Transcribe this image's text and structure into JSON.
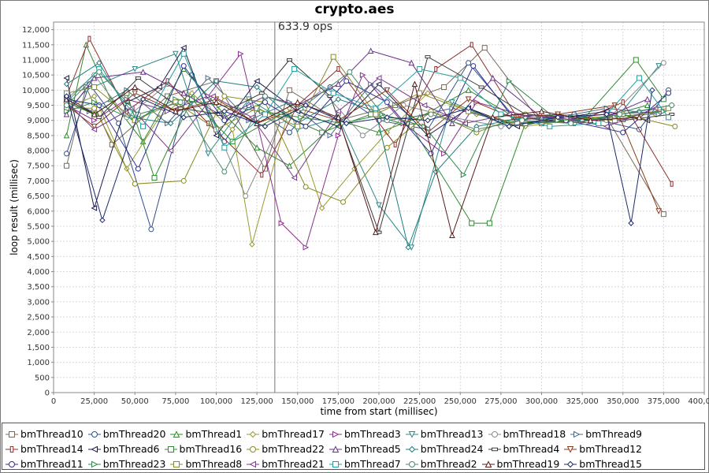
{
  "chart_data": {
    "type": "line",
    "title": "crypto.aes",
    "xlabel": "time from start (millisec)",
    "ylabel": "loop result (millisec)",
    "xlim": [
      0,
      400000
    ],
    "ylim": [
      0,
      12250
    ],
    "xticks": [
      "0",
      "25,000",
      "50,000",
      "75,000",
      "100,000",
      "125,000",
      "150,000",
      "175,000",
      "200,000",
      "225,000",
      "250,000",
      "275,000",
      "300,000",
      "325,000",
      "350,000",
      "375,000",
      "400,000"
    ],
    "yticks": [
      "0",
      "500",
      "1,000",
      "1,500",
      "2,000",
      "2,500",
      "3,000",
      "3,500",
      "4,000",
      "4,500",
      "5,000",
      "5,500",
      "6,000",
      "6,500",
      "7,000",
      "7,500",
      "8,000",
      "8,500",
      "9,000",
      "9,500",
      "10,000",
      "10,500",
      "11,000",
      "11,500",
      "12,000"
    ],
    "grid": true,
    "legend_position": "bottom",
    "marker": {
      "x": 136000,
      "label": "633.9 ops"
    },
    "series": [
      {
        "name": "bmThread10",
        "color": "#7a6a5a",
        "marker": "square",
        "x": [
          8000,
          20000,
          36000,
          70000,
          100000,
          130000,
          145000,
          175000,
          210000,
          240000,
          265000,
          300000,
          340000,
          375000
        ],
        "values": [
          7500,
          10100,
          8200,
          9800,
          10300,
          7400,
          10000,
          9000,
          9500,
          10100,
          11400,
          8900,
          9100,
          5900
        ]
      },
      {
        "name": "bmThread20",
        "color": "#2f4f8f",
        "marker": "circle",
        "x": [
          8000,
          22000,
          40000,
          60000,
          85000,
          105000,
          120000,
          145000,
          170000,
          200000,
          230000,
          255000,
          285000,
          320000,
          360000,
          378000
        ],
        "values": [
          7900,
          10200,
          8900,
          5400,
          10500,
          8300,
          9500,
          8600,
          10100,
          9000,
          8700,
          10900,
          9000,
          9200,
          8700,
          10000
        ]
      },
      {
        "name": "bmThread1",
        "color": "#2e8b2e",
        "marker": "triangle",
        "x": [
          8000,
          20000,
          35000,
          55000,
          80000,
          105000,
          125000,
          145000,
          175000,
          200000,
          225000,
          255000,
          290000,
          330000,
          365000
        ],
        "values": [
          8500,
          11500,
          9700,
          8300,
          10700,
          9200,
          8100,
          7500,
          9000,
          8600,
          9100,
          10000,
          8900,
          9000,
          9500
        ]
      },
      {
        "name": "bmThread17",
        "color": "#9a9a30",
        "marker": "diamond",
        "x": [
          8000,
          25000,
          45000,
          65000,
          85000,
          110000,
          122000,
          145000,
          165000,
          185000,
          205000,
          230000,
          260000,
          290000,
          330000,
          370000
        ],
        "values": [
          9400,
          9800,
          7400,
          9100,
          9900,
          8700,
          4900,
          9400,
          6100,
          7400,
          8600,
          9900,
          9200,
          8800,
          9100,
          9200
        ]
      },
      {
        "name": "bmThread3",
        "color": "#8b2f8b",
        "marker": "rightarrow",
        "x": [
          8000,
          25000,
          45000,
          70000,
          95000,
          115000,
          140000,
          155000,
          175000,
          190000,
          215000,
          240000,
          260000,
          300000,
          340000,
          375000
        ],
        "values": [
          9500,
          9000,
          9700,
          9300,
          9800,
          11200,
          5600,
          4800,
          8500,
          10500,
          8900,
          7900,
          9600,
          9000,
          9200,
          9300
        ]
      },
      {
        "name": "bmThread13",
        "color": "#2f8b8b",
        "marker": "downtriangle",
        "x": [
          8000,
          20000,
          50000,
          75000,
          95000,
          120000,
          150000,
          175000,
          200000,
          220000,
          245000,
          275000,
          310000,
          345000,
          372000
        ],
        "values": [
          9300,
          10000,
          10700,
          11200,
          7900,
          9700,
          8700,
          9100,
          6200,
          4800,
          9600,
          8900,
          9200,
          9000,
          10800
        ]
      },
      {
        "name": "bmThread18",
        "color": "#8a8a8a",
        "marker": "circle",
        "x": [
          8000,
          25000,
          45000,
          70000,
          95000,
          118000,
          140000,
          165000,
          190000,
          215000,
          245000,
          275000,
          305000,
          340000,
          375000
        ],
        "values": [
          9700,
          10500,
          9100,
          10200,
          9400,
          6500,
          9000,
          10000,
          8500,
          9500,
          9100,
          8800,
          9000,
          9000,
          10900
        ]
      },
      {
        "name": "bmThread9",
        "color": "#4a6a8a",
        "marker": "rightarrow",
        "x": [
          8000,
          22000,
          45000,
          70000,
          95000,
          120000,
          145000,
          170000,
          195000,
          220000,
          245000,
          275000,
          310000,
          340000,
          372000
        ],
        "values": [
          9600,
          9300,
          10000,
          8900,
          10400,
          9000,
          9600,
          8500,
          10200,
          9100,
          9400,
          9000,
          9100,
          9400,
          9200
        ]
      },
      {
        "name": "bmThread14",
        "color": "#8b2f2f",
        "marker": "vbar",
        "x": [
          8000,
          22000,
          45000,
          70000,
          95000,
          128000,
          150000,
          175000,
          210000,
          235000,
          257000,
          285000,
          320000,
          350000,
          380000
        ],
        "values": [
          9800,
          11700,
          9300,
          10300,
          8900,
          7200,
          9500,
          10700,
          8200,
          10700,
          11500,
          9100,
          8900,
          9600,
          6900
        ]
      },
      {
        "name": "bmThread6",
        "color": "#1a1a4a",
        "marker": "leftarrow",
        "x": [
          8000,
          25000,
          45000,
          65000,
          80000,
          100000,
          125000,
          150000,
          175000,
          200000,
          230000,
          255000,
          285000,
          315000,
          340000,
          365000
        ],
        "values": [
          10400,
          6100,
          9600,
          10100,
          11400,
          8500,
          10300,
          9300,
          8800,
          10200,
          8500,
          9400,
          8800,
          9100,
          9300,
          9000
        ]
      },
      {
        "name": "bmThread16",
        "color": "#2e8b2e",
        "marker": "square",
        "x": [
          8000,
          25000,
          45000,
          62000,
          85000,
          110000,
          140000,
          165000,
          195000,
          220000,
          257000,
          268000,
          290000,
          325000,
          358000,
          375000
        ],
        "values": [
          9600,
          9200,
          9900,
          7100,
          9700,
          8300,
          9200,
          8600,
          9200,
          8800,
          5600,
          5600,
          8900,
          9000,
          11000,
          9700
        ]
      },
      {
        "name": "bmThread22",
        "color": "#8a8a20",
        "marker": "circle",
        "x": [
          8000,
          25000,
          50000,
          80000,
          105000,
          130000,
          155000,
          178000,
          205000,
          232000,
          260000,
          290000,
          320000,
          350000,
          382000
        ],
        "values": [
          9400,
          9400,
          6900,
          7000,
          9800,
          9600,
          6800,
          6300,
          8100,
          9300,
          8600,
          9200,
          8900,
          9200,
          8800
        ]
      },
      {
        "name": "bmThread5",
        "color": "#6a2f8b",
        "marker": "triangle",
        "x": [
          8000,
          25000,
          55000,
          80000,
          105000,
          130000,
          150000,
          175000,
          195000,
          220000,
          245000,
          270000,
          300000,
          335000,
          365000
        ],
        "values": [
          9200,
          10400,
          10600,
          9900,
          9100,
          9800,
          9500,
          10200,
          11300,
          10900,
          8900,
          10400,
          9100,
          9000,
          9700
        ]
      },
      {
        "name": "bmThread24",
        "color": "#1f7f7f",
        "marker": "diamond",
        "x": [
          8000,
          28000,
          48000,
          72000,
          100000,
          125000,
          150000,
          175000,
          198000,
          218000,
          235000,
          260000,
          290000,
          325000,
          360000,
          380000
        ],
        "values": [
          10200,
          10900,
          9100,
          8900,
          10300,
          10100,
          8900,
          9700,
          9300,
          4800,
          7300,
          8800,
          9100,
          9000,
          9300,
          9500
        ]
      },
      {
        "name": "bmThread4",
        "color": "#3a3a3a",
        "marker": "hbar",
        "x": [
          8000,
          28000,
          52000,
          78000,
          102000,
          128000,
          145000,
          170000,
          200000,
          230000,
          263000,
          290000,
          320000,
          350000,
          380000
        ],
        "values": [
          9800,
          9100,
          10400,
          9400,
          9200,
          9900,
          11000,
          9800,
          5300,
          11100,
          10100,
          9200,
          9100,
          9000,
          9200
        ]
      },
      {
        "name": "bmThread12",
        "color": "#8b3a1a",
        "marker": "downtriangle",
        "x": [
          8000,
          25000,
          50000,
          75000,
          100000,
          125000,
          150000,
          175000,
          205000,
          230000,
          255000,
          282000,
          310000,
          345000,
          372000
        ],
        "values": [
          9500,
          8800,
          9900,
          9300,
          9700,
          8900,
          9400,
          9000,
          10000,
          8600,
          9700,
          9100,
          9200,
          9500,
          6000
        ]
      },
      {
        "name": "bmThread11",
        "color": "#2f2f8f",
        "marker": "circle",
        "x": [
          8000,
          28000,
          52000,
          80000,
          105000,
          130000,
          155000,
          180000,
          205000,
          232000,
          258000,
          285000,
          315000,
          350000,
          378000
        ],
        "values": [
          9700,
          9500,
          7400,
          10800,
          9000,
          9600,
          8800,
          10300,
          9600,
          7900,
          10800,
          8900,
          9000,
          8600,
          9900
        ]
      },
      {
        "name": "bmThread23",
        "color": "#2f8b4a",
        "marker": "rightarrow",
        "x": [
          8000,
          25000,
          50000,
          75000,
          102000,
          128000,
          152000,
          178000,
          202000,
          228000,
          252000,
          280000,
          310000,
          345000,
          375000
        ],
        "values": [
          9300,
          9600,
          9000,
          9700,
          9500,
          9300,
          9100,
          8900,
          9200,
          8800,
          7200,
          10300,
          9000,
          9100,
          9300
        ]
      },
      {
        "name": "bmThread8",
        "color": "#8a8a30",
        "marker": "square",
        "x": [
          8000,
          25000,
          50000,
          75000,
          100000,
          125000,
          150000,
          172000,
          198000,
          225000,
          255000,
          285000,
          315000,
          345000,
          378000
        ],
        "values": [
          9900,
          10100,
          9000,
          9600,
          8700,
          9400,
          8800,
          11100,
          9200,
          9900,
          9300,
          8900,
          9100,
          9000,
          9400
        ]
      },
      {
        "name": "bmThread21",
        "color": "#7a3a8b",
        "marker": "leftarrow",
        "x": [
          8000,
          25000,
          48000,
          72000,
          98000,
          122000,
          148000,
          175000,
          200000,
          228000,
          253000,
          280000,
          310000,
          340000,
          370000
        ],
        "values": [
          9600,
          8700,
          9400,
          8000,
          9800,
          9100,
          7100,
          9300,
          10400,
          9500,
          8900,
          9200,
          9100,
          8800,
          9400
        ]
      },
      {
        "name": "bmThread7",
        "color": "#20a0a0",
        "marker": "square",
        "x": [
          8000,
          28000,
          55000,
          80000,
          105000,
          130000,
          148000,
          172000,
          198000,
          225000,
          250000,
          275000,
          305000,
          335000,
          360000,
          378000
        ],
        "values": [
          9600,
          10700,
          8800,
          11200,
          8100,
          9200,
          10700,
          9900,
          9400,
          10700,
          10400,
          9200,
          8800,
          8900,
          10400,
          9100
        ]
      },
      {
        "name": "bmThread2",
        "color": "#4a8a6a",
        "marker": "circle",
        "x": [
          8000,
          28000,
          52000,
          78000,
          105000,
          130000,
          152000,
          182000,
          205000,
          232000,
          260000,
          288000,
          318000,
          348000,
          380000
        ],
        "values": [
          9500,
          10600,
          9200,
          9600,
          7300,
          9800,
          9400,
          10600,
          9000,
          9200,
          8700,
          9000,
          8900,
          9200,
          9500
        ]
      },
      {
        "name": "bmThread19",
        "color": "#5a1a1a",
        "marker": "triangle",
        "x": [
          8000,
          25000,
          50000,
          75000,
          100000,
          125000,
          150000,
          175000,
          198000,
          222000,
          245000,
          270000,
          300000,
          330000,
          360000
        ],
        "values": [
          9700,
          9200,
          10100,
          9300,
          9600,
          8900,
          9600,
          9100,
          5300,
          10200,
          5200,
          9100,
          9300,
          9000,
          9100
        ]
      },
      {
        "name": "bmThread15",
        "color": "#1a2a6a",
        "marker": "diamond",
        "x": [
          8000,
          30000,
          55000,
          80000,
          105000,
          130000,
          155000,
          180000,
          205000,
          230000,
          255000,
          280000,
          310000,
          340000,
          355000,
          368000
        ],
        "values": [
          9800,
          5700,
          9700,
          9100,
          9300,
          8800,
          9500,
          8900,
          9100,
          9000,
          9400,
          8800,
          9100,
          9200,
          5600,
          10000
        ]
      }
    ]
  }
}
